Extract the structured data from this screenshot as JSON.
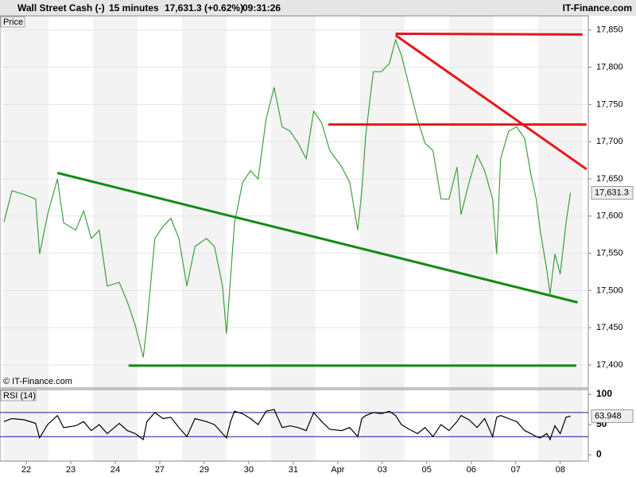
{
  "header": {
    "instrument": "Wall Street Cash (-)",
    "interval": "15 minutes",
    "quote": "17,631.3 (+0.62%)",
    "time": "09:31:26",
    "brand": "IT-Finance.com"
  },
  "chart_data": [
    {
      "type": "line",
      "title": "Price",
      "credit": "© IT-Finance.com",
      "xlim": [
        -0.59,
        12.63
      ],
      "ylim": [
        17369,
        17869
      ],
      "yticks": [
        {
          "value": 17400,
          "label": "17,400"
        },
        {
          "value": 17450,
          "label": "17,450"
        },
        {
          "value": 17500,
          "label": "17,500"
        },
        {
          "value": 17550,
          "label": "17,550"
        },
        {
          "value": 17600,
          "label": "17,600"
        },
        {
          "value": 17650,
          "label": "17,650"
        },
        {
          "value": 17700,
          "label": "17,700"
        },
        {
          "value": 17750,
          "label": "17,750"
        },
        {
          "value": 17800,
          "label": "17,800"
        },
        {
          "value": 17850,
          "label": "17,850"
        }
      ],
      "grid": true,
      "x": [
        -0.5,
        -0.32,
        -0.05,
        0.21,
        0.3,
        0.48,
        0.7,
        0.84,
        1.11,
        1.29,
        1.46,
        1.64,
        1.82,
        2.09,
        2.27,
        2.45,
        2.63,
        2.71,
        2.89,
        3.07,
        3.25,
        3.43,
        3.61,
        3.79,
        4.05,
        4.23,
        4.41,
        4.5,
        4.59,
        4.68,
        4.86,
        5.04,
        5.21,
        5.39,
        5.57,
        5.75,
        5.93,
        6.11,
        6.29,
        6.46,
        6.64,
        6.82,
        7.09,
        7.27,
        7.45,
        7.54,
        7.63,
        7.8,
        7.98,
        8.16,
        8.3,
        8.43,
        8.61,
        8.79,
        8.96,
        9.14,
        9.32,
        9.5,
        9.68,
        9.77,
        9.95,
        10.13,
        10.3,
        10.48,
        10.57,
        10.66,
        10.84,
        11.02,
        11.2,
        11.34,
        11.46,
        11.55,
        11.7,
        11.77,
        11.88,
        12.0,
        12.13,
        12.23
      ],
      "series": [
        {
          "color": "#3f9f3f",
          "values": [
            17592,
            17634,
            17629,
            17623,
            17549,
            17602,
            17650,
            17591,
            17581,
            17607,
            17570,
            17581,
            17506,
            17511,
            17485,
            17453,
            17410,
            17453,
            17570,
            17586,
            17597,
            17570,
            17506,
            17559,
            17570,
            17559,
            17506,
            17442,
            17517,
            17591,
            17645,
            17661,
            17650,
            17730,
            17773,
            17720,
            17714,
            17698,
            17677,
            17741,
            17725,
            17688,
            17666,
            17645,
            17581,
            17634,
            17709,
            17794,
            17794,
            17805,
            17837,
            17816,
            17773,
            17730,
            17698,
            17688,
            17623,
            17623,
            17666,
            17602,
            17645,
            17682,
            17661,
            17623,
            17549,
            17677,
            17714,
            17720,
            17704,
            17656,
            17623,
            17581,
            17527,
            17495,
            17549,
            17522,
            17591,
            17631.3
          ],
          "last_label": "17,631.3"
        }
      ],
      "trendlines": [
        {
          "color": "#e8141c",
          "points": [
            [
              8.3,
              17845
            ],
            [
              12.5,
              17844
            ]
          ]
        },
        {
          "color": "#e8141c",
          "points": [
            [
              8.3,
              17843
            ],
            [
              12.59,
              17663
            ]
          ]
        },
        {
          "color": "#e8141c",
          "points": [
            [
              6.79,
              17723
            ],
            [
              12.59,
              17723
            ]
          ]
        },
        {
          "color": "#138a13",
          "points": [
            [
              0.7,
              17658
            ],
            [
              12.39,
              17484
            ]
          ]
        },
        {
          "color": "#138a13",
          "points": [
            [
              2.3,
              17399
            ],
            [
              12.36,
              17399
            ]
          ]
        }
      ]
    },
    {
      "type": "line",
      "title": "RSI (14)",
      "xlim": [
        -0.59,
        12.63
      ],
      "ylim": [
        -10.5,
        108
      ],
      "yticks": [
        0,
        50,
        100
      ],
      "levels": [
        30,
        70
      ],
      "level_color": "#1a1a8c",
      "xticks": [
        {
          "value": 0,
          "label": "22"
        },
        {
          "value": 1,
          "label": "23"
        },
        {
          "value": 2,
          "label": "24"
        },
        {
          "value": 3,
          "label": "27"
        },
        {
          "value": 4,
          "label": "29"
        },
        {
          "value": 5,
          "label": "30"
        },
        {
          "value": 6,
          "label": "31"
        },
        {
          "value": 7,
          "label": "Apr"
        },
        {
          "value": 8,
          "label": "03"
        },
        {
          "value": 9,
          "label": "05"
        },
        {
          "value": 10,
          "label": "06"
        },
        {
          "value": 11,
          "label": "07"
        },
        {
          "value": 12,
          "label": "08"
        }
      ],
      "x": [
        -0.5,
        -0.32,
        -0.05,
        0.21,
        0.3,
        0.48,
        0.7,
        0.84,
        1.11,
        1.29,
        1.46,
        1.64,
        1.82,
        2.09,
        2.27,
        2.45,
        2.63,
        2.71,
        2.89,
        3.07,
        3.25,
        3.43,
        3.61,
        3.79,
        4.05,
        4.23,
        4.41,
        4.5,
        4.59,
        4.68,
        4.86,
        5.04,
        5.21,
        5.39,
        5.57,
        5.75,
        5.93,
        6.11,
        6.29,
        6.46,
        6.64,
        6.82,
        7.09,
        7.27,
        7.45,
        7.54,
        7.63,
        7.8,
        7.98,
        8.16,
        8.3,
        8.43,
        8.61,
        8.79,
        8.96,
        9.14,
        9.32,
        9.5,
        9.68,
        9.77,
        9.95,
        10.13,
        10.3,
        10.48,
        10.57,
        10.66,
        10.84,
        11.02,
        11.2,
        11.34,
        11.46,
        11.55,
        11.7,
        11.77,
        11.88,
        12.0,
        12.13,
        12.23
      ],
      "series": [
        {
          "color": "#000000",
          "values": [
            55,
            60,
            58,
            52,
            28,
            50,
            65,
            45,
            48,
            55,
            40,
            50,
            35,
            52,
            40,
            35,
            25,
            55,
            70,
            60,
            62,
            45,
            30,
            60,
            55,
            50,
            35,
            28,
            55,
            72,
            68,
            60,
            50,
            72,
            75,
            45,
            48,
            45,
            40,
            70,
            55,
            42,
            40,
            45,
            30,
            60,
            65,
            70,
            68,
            72,
            65,
            50,
            42,
            35,
            45,
            30,
            50,
            40,
            55,
            65,
            58,
            45,
            60,
            30,
            62,
            65,
            60,
            55,
            40,
            35,
            30,
            28,
            35,
            25,
            48,
            35,
            62,
            63.948
          ]
        }
      ]
    }
  ]
}
